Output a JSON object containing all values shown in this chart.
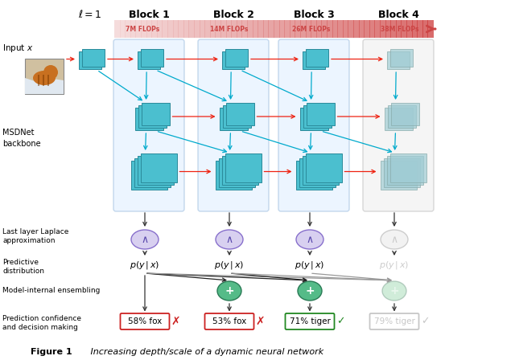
{
  "bg_color": "#ffffff",
  "tensor_fill": "#4bbfcf",
  "tensor_border": "#2a8a9a",
  "tensor_fill_gray": "#a0ccd4",
  "tensor_border_gray": "#88aaaa",
  "block_bg": "#ddeeff",
  "block_border": "#99bbdd",
  "block4_bg": "#eeeeee",
  "block4_border": "#bbbbbb",
  "laplace_fill": "#d8d0f0",
  "laplace_border": "#8870cc",
  "laplace_fill_gray": "#e8e8e8",
  "laplace_border_gray": "#aaaaaa",
  "laplace_symbol_color": "#5544aa",
  "ensemble_fill": "#55bb88",
  "ensemble_border": "#2a7a55",
  "ensemble_fill_gray": "#aaddbb",
  "ensemble_border_gray": "#88aa99",
  "red_arrow": "#ee2211",
  "cyan_arrow": "#00aacc",
  "black_arrow": "#222222",
  "gray_arrow": "#999999",
  "flop_fill_start": "#f8d0d0",
  "flop_fill_end": "#cc3333",
  "flop_text": "#bb4444",
  "red_box": "#cc2222",
  "green_box": "#228822",
  "gray_box": "#999999",
  "block_labels": [
    "Block 1",
    "Block 2",
    "Block 3",
    "Block 4"
  ],
  "flop_labels": [
    "7M FLOPs",
    "14M FLOPs",
    "26M FLOPs",
    "38M FLOPs"
  ],
  "caption_bold": "Figure 1",
  "caption_italic": "   Increasing depth/scale of a dynamic neural network"
}
